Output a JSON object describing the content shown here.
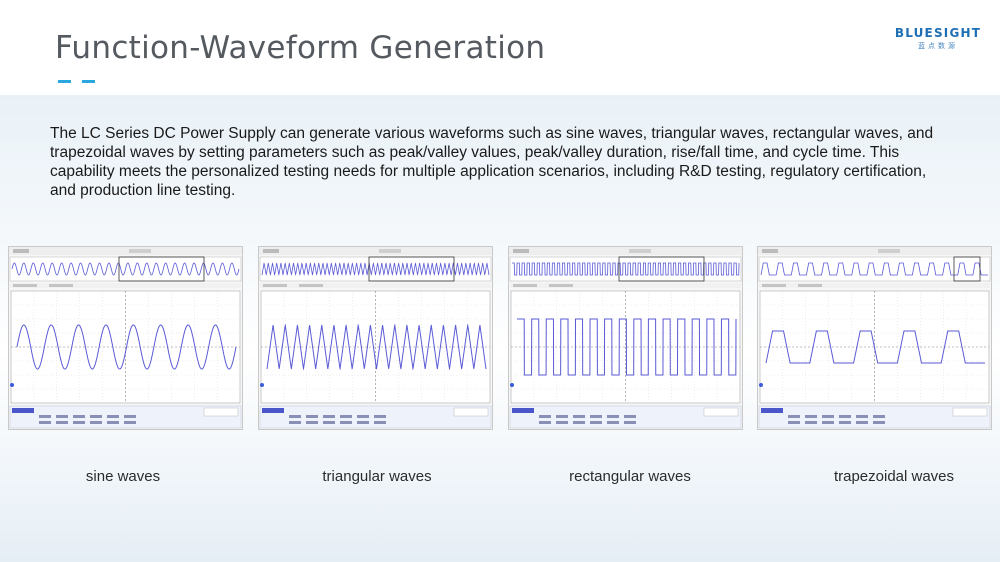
{
  "slide": {
    "title": "Function-Waveform Generation",
    "logo": {
      "text": "BLUESIGHT",
      "subtext": "蓝点数源"
    },
    "description": "The LC Series DC Power Supply can generate various waveforms such as sine waves, triangular waves, rectangular waves, and trapezoidal waves by setting parameters such as peak/valley values, peak/valley duration, rise/fall time, and cycle time. This capability meets the personalized testing needs for multiple application scenarios, including R&D testing, regulatory certification, and production line testing."
  },
  "colors": {
    "accent": "#2aa6e0",
    "wave": "#5a5ad6",
    "title": "#555a60"
  },
  "waveforms": [
    {
      "caption": "sine waves",
      "shape": "sine",
      "cycles": 8
    },
    {
      "caption": "triangular waves",
      "shape": "triangle",
      "cycles": 18
    },
    {
      "caption": "rectangular waves",
      "shape": "rectangle",
      "cycles": 15
    },
    {
      "caption": "trapezoidal waves",
      "shape": "trapezoid",
      "cycles": 5
    }
  ]
}
